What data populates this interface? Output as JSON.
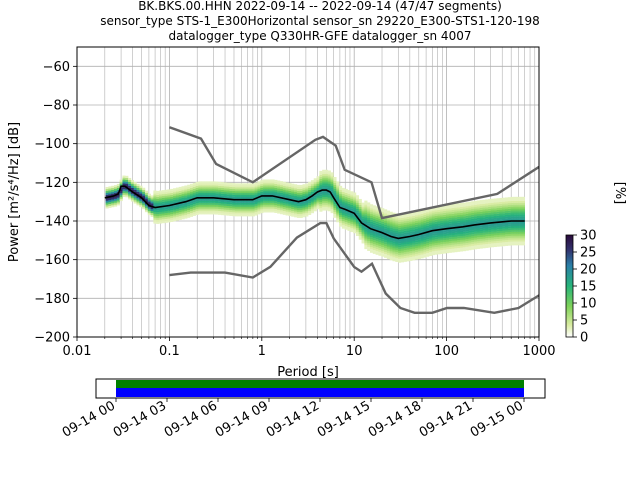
{
  "title": {
    "line1": "BK.BKS.00.HHN   2022-09-14 -- 2022-09-14  (47/47 segments)",
    "line2": "sensor_type STS-1_E300Horizontal sensor_sn 29220_E300-STS1-120-198",
    "line3": "datalogger_type Q330HR-GFE datalogger_sn 4007"
  },
  "chart_data": [
    {
      "type": "heatmap",
      "xlabel": "Period [s]",
      "ylabel": "Power [m²/s⁴/Hz] [dB]",
      "x_scale": "log",
      "xlim": [
        0.01,
        1000
      ],
      "ylim": [
        -200,
        -50
      ],
      "x_ticks": [
        {
          "value": 0.01,
          "label": "0.01"
        },
        {
          "value": 0.1,
          "label": "0.1"
        },
        {
          "value": 1,
          "label": "1"
        },
        {
          "value": 10,
          "label": "10"
        },
        {
          "value": 100,
          "label": "100"
        },
        {
          "value": 1000,
          "label": "1000"
        }
      ],
      "y_ticks": [
        {
          "value": -60,
          "label": "−60"
        },
        {
          "value": -80,
          "label": "−80"
        },
        {
          "value": -100,
          "label": "−100"
        },
        {
          "value": -120,
          "label": "−120"
        },
        {
          "value": -140,
          "label": "−140"
        },
        {
          "value": -160,
          "label": "−160"
        },
        {
          "value": -180,
          "label": "−180"
        },
        {
          "value": -200,
          "label": "−200"
        }
      ],
      "grid": true,
      "noise_models": {
        "high": {
          "x": [
            0.1,
            0.22,
            0.32,
            0.8,
            3.8,
            4.6,
            6.3,
            7.9,
            15.4,
            20,
            354,
            1000
          ],
          "y": [
            -91.5,
            -97.4,
            -110.5,
            -120,
            -98,
            -96.5,
            -101,
            -113.5,
            -120,
            -138.5,
            -126,
            -112
          ]
        },
        "low": {
          "x": [
            0.1,
            0.17,
            0.4,
            0.8,
            1.24,
            2.4,
            4.3,
            5,
            6,
            10,
            12,
            15.6,
            21.9,
            31.6,
            45,
            70,
            101,
            154,
            328,
            600,
            1000
          ],
          "y": [
            -168,
            -166.7,
            -166.7,
            -169.2,
            -163.7,
            -148.6,
            -141.1,
            -141.1,
            -149,
            -163.8,
            -166.2,
            -162.1,
            -177.5,
            -185,
            -187.5,
            -187.5,
            -185,
            -185,
            -187.5,
            -185,
            -178.5
          ]
        }
      },
      "mean_curve": {
        "x": [
          0.02,
          0.025,
          0.028,
          0.03,
          0.033,
          0.04,
          0.05,
          0.06,
          0.07,
          0.1,
          0.15,
          0.2,
          0.3,
          0.5,
          0.8,
          1,
          1.3,
          2,
          2.5,
          3,
          3.5,
          4,
          4.5,
          5,
          5.5,
          6,
          7,
          8,
          10,
          12,
          15,
          20,
          25,
          30,
          40,
          50,
          70,
          100,
          150,
          200,
          300,
          500,
          700
        ],
        "y": [
          -128,
          -127,
          -126,
          -122,
          -122,
          -125,
          -128,
          -132,
          -133,
          -132,
          -130,
          -128,
          -128,
          -129,
          -129,
          -127,
          -127,
          -129,
          -130,
          -129,
          -127,
          -125,
          -124,
          -124,
          -125,
          -128,
          -133,
          -134,
          -136,
          -141,
          -144,
          -146,
          -148,
          -149,
          -148,
          -147,
          -145,
          -144,
          -143,
          -142,
          -141,
          -140,
          -140
        ]
      },
      "colorbar": {
        "label": "[%]",
        "range": [
          0,
          30
        ],
        "ticks": [
          0,
          5,
          10,
          15,
          20,
          25,
          30
        ],
        "colormap": "pqlx"
      }
    },
    {
      "type": "timeline",
      "x_ticks": [
        "09-14 00",
        "09-14 03",
        "09-14 06",
        "09-14 09",
        "09-14 12",
        "09-14 15",
        "09-14 18",
        "09-14 21",
        "09-15 00"
      ],
      "coverage_color": "#008000",
      "used_color": "#0000ff"
    }
  ]
}
